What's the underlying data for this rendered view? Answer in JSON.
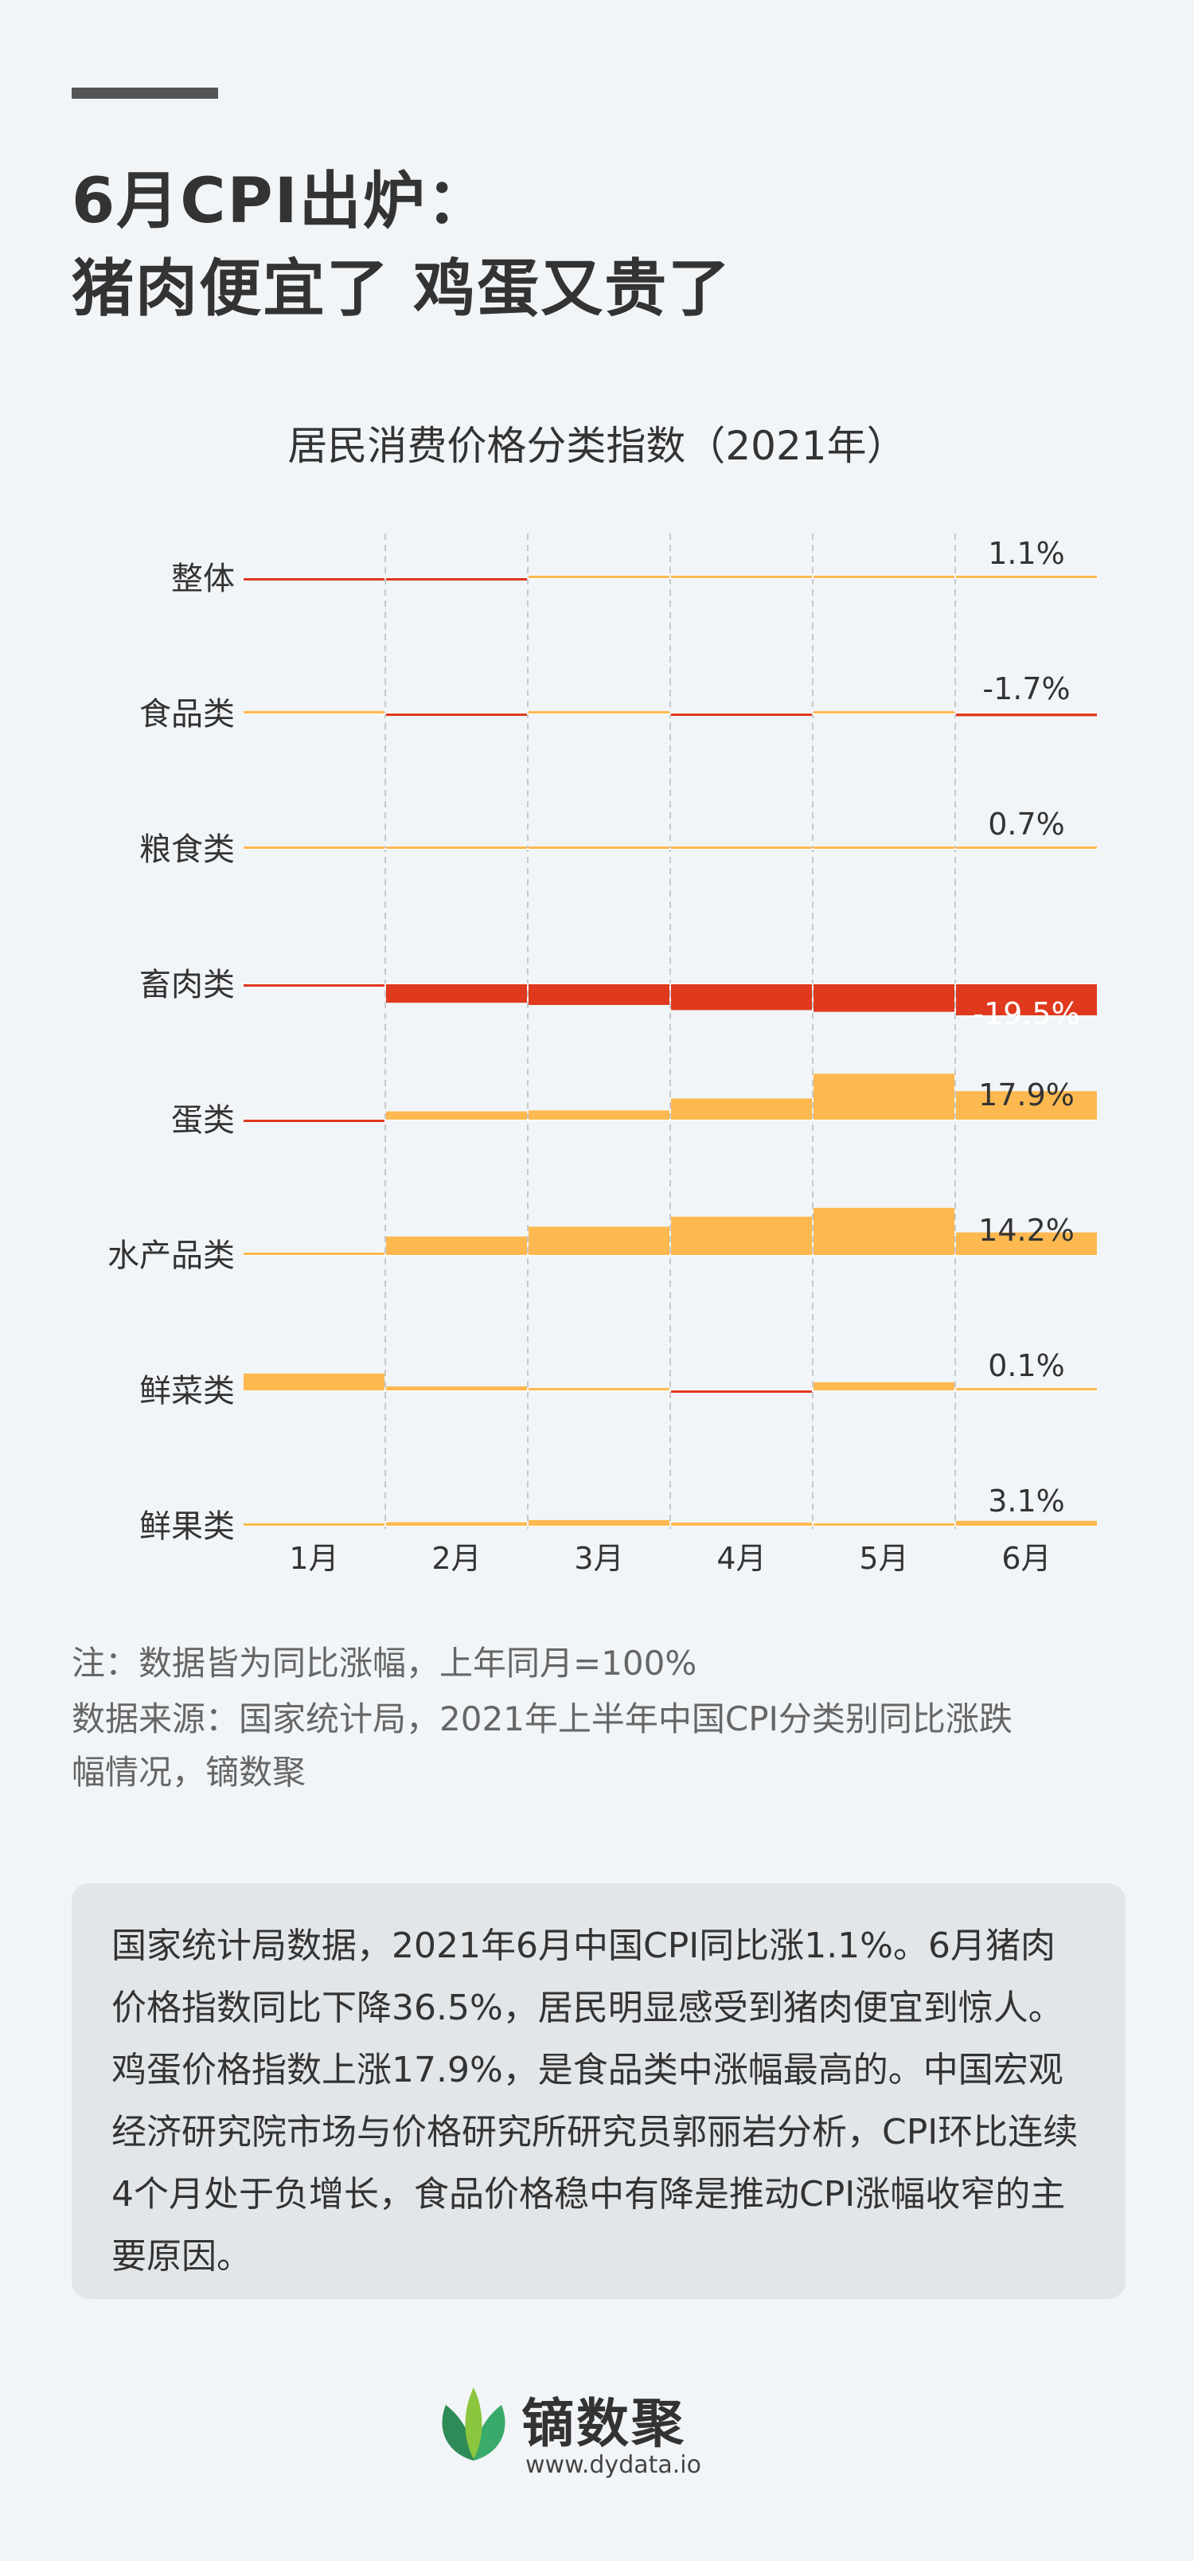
{
  "header": {
    "title_line1": "6月CPI出炉：",
    "title_line2": "猪肉便宜了 鸡蛋又贵了"
  },
  "chart_data": {
    "type": "bar",
    "title": "居民消费价格分类指数（2021年）",
    "x": [
      "1月",
      "2月",
      "3月",
      "4月",
      "5月",
      "6月"
    ],
    "series": [
      {
        "name": "整体",
        "values": [
          -0.3,
          -0.2,
          0.4,
          0.9,
          1.3,
          1.1
        ],
        "label": "1.1%"
      },
      {
        "name": "食品类",
        "values": [
          1.6,
          -0.2,
          0.7,
          -0.7,
          0.3,
          -1.7
        ],
        "label": "-1.7%"
      },
      {
        "name": "粮食类",
        "values": [
          1.2,
          1.3,
          1.1,
          1.3,
          0.9,
          0.7
        ],
        "label": "0.7%"
      },
      {
        "name": "畜肉类",
        "values": [
          -0.2,
          -11.6,
          -13.0,
          -16.2,
          -17.3,
          -19.5
        ],
        "label": "-19.5%"
      },
      {
        "name": "蛋类",
        "values": [
          -1.0,
          5.2,
          5.8,
          13.3,
          28.8,
          17.9
        ],
        "label": "17.9%"
      },
      {
        "name": "水产品类",
        "values": [
          0.7,
          11.6,
          17.8,
          24.1,
          29.6,
          14.2
        ],
        "label": "14.2%"
      },
      {
        "name": "鲜菜类",
        "values": [
          10.6,
          2.5,
          0.0,
          -1.1,
          5.1,
          0.1
        ],
        "label": "0.1%"
      },
      {
        "name": "鲜果类",
        "values": [
          0.4,
          2.2,
          3.6,
          2.0,
          0.9,
          3.1
        ],
        "label": "3.1%"
      }
    ],
    "colors": {
      "positive": "#fdb94f",
      "negative": "#e0391d"
    }
  },
  "notes": {
    "line1": "注：数据皆为同比涨幅，上年同月=100%",
    "line2": "数据来源：国家统计局，2021年上半年中国CPI分类别同比涨跌",
    "line3": "幅情况，镝数聚"
  },
  "summary": {
    "text": "国家统计局数据，2021年6月中国CPI同比涨1.1%。6月猪肉价格指数同比下降36.5%，居民明显感受到猪肉便宜到惊人。鸡蛋价格指数上涨17.9%，是食品类中涨幅最高的。中国宏观经济研究院市场与价格研究所研究员郭丽岩分析，CPI环比连续4个月处于负增长，食品价格稳中有降是推动CPI涨幅收窄的主要原因。"
  },
  "brand": {
    "name": "镝数聚",
    "url": "www.dydata.io",
    "logo_icon": "leaf-logo-icon"
  }
}
